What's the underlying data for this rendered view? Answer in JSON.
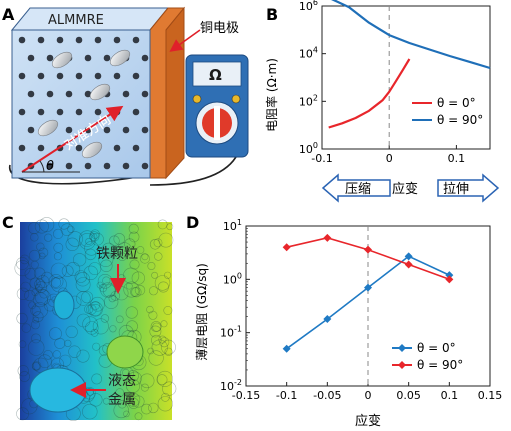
{
  "panels": {
    "A": {
      "letter": "A",
      "cube_label": "ALMMRE",
      "electrode_label": "铜电极",
      "direction_label": "对准方向",
      "theta_label": "θ",
      "meter_label": "Ω",
      "colors": {
        "cube_face": "#b7d3ef",
        "cube_side": "#8fb3da",
        "cube_top": "#d6e6f7",
        "electrode": "#e07a32",
        "meter_body": "#2f6fb4",
        "meter_dial": "#e03a2a",
        "arrow": "#e0202a"
      }
    },
    "B": {
      "letter": "B",
      "arrow_left_label": "压缩",
      "arrow_right_label": "拉伸",
      "center_label": "应变"
    },
    "C": {
      "letter": "C",
      "particle_label": "铁颗粒",
      "liquid_label_line1": "液态",
      "liquid_label_line2": "金属"
    },
    "D": {
      "letter": "D"
    }
  },
  "chart_data": [
    {
      "id": "B",
      "type": "line",
      "ylabel": "电阻率 (Ω·m)",
      "yscale": "log",
      "xlim": [
        -0.1,
        0.15
      ],
      "ylim": [
        1,
        1000000
      ],
      "xticks": [
        -0.1,
        0,
        0.1
      ],
      "xtick_labels": [
        "-0.1",
        "0",
        "0.1"
      ],
      "yticks": [
        1,
        100,
        10000,
        1000000
      ],
      "ytick_labels": [
        "10^0",
        "10^2",
        "10^4",
        "10^6"
      ],
      "zero_line": 0,
      "legend": "right",
      "series": [
        {
          "name": "θ = 0°",
          "color": "#e8262b",
          "x": [
            -0.09,
            -0.07,
            -0.05,
            -0.03,
            -0.01,
            0.0,
            0.01,
            0.02,
            0.03
          ],
          "y": [
            8,
            12,
            20,
            40,
            110,
            250,
            700,
            2000,
            6000
          ]
        },
        {
          "name": "θ = 90°",
          "color": "#1f6fb8",
          "x": [
            -0.1,
            -0.06,
            -0.03,
            0.0,
            0.03,
            0.06,
            0.09,
            0.12,
            0.15
          ],
          "y": [
            3000000,
            900000,
            200000,
            60000,
            28000,
            15000,
            8000,
            4500,
            2500
          ]
        }
      ]
    },
    {
      "id": "D",
      "type": "line",
      "xlabel": "应变",
      "ylabel": "薄层电阻 (GΩ/sq)",
      "yscale": "log",
      "xlim": [
        -0.15,
        0.15
      ],
      "ylim": [
        0.01,
        10
      ],
      "xticks": [
        -0.15,
        -0.1,
        -0.05,
        0,
        0.05,
        0.1,
        0.15
      ],
      "xtick_labels": [
        "-0.15",
        "-0.1",
        "-0.05",
        "0",
        "0.05",
        "0.1",
        "0.15"
      ],
      "yticks": [
        0.01,
        0.1,
        1,
        10
      ],
      "ytick_labels": [
        "10^-2",
        "10^-1",
        "10^0",
        "10^1"
      ],
      "zero_line": 0,
      "legend": "bottom-right",
      "series": [
        {
          "name": "θ = 0°",
          "color": "#1f7ac4",
          "marker": "diamond",
          "x": [
            -0.1,
            -0.05,
            0,
            0.05,
            0.1
          ],
          "y": [
            0.05,
            0.18,
            0.7,
            2.7,
            1.2
          ]
        },
        {
          "name": "θ = 90°",
          "color": "#e8262b",
          "marker": "diamond",
          "x": [
            -0.1,
            -0.05,
            0,
            0.05,
            0.1
          ],
          "y": [
            4.0,
            6.0,
            3.6,
            1.9,
            1.0
          ]
        }
      ]
    }
  ]
}
